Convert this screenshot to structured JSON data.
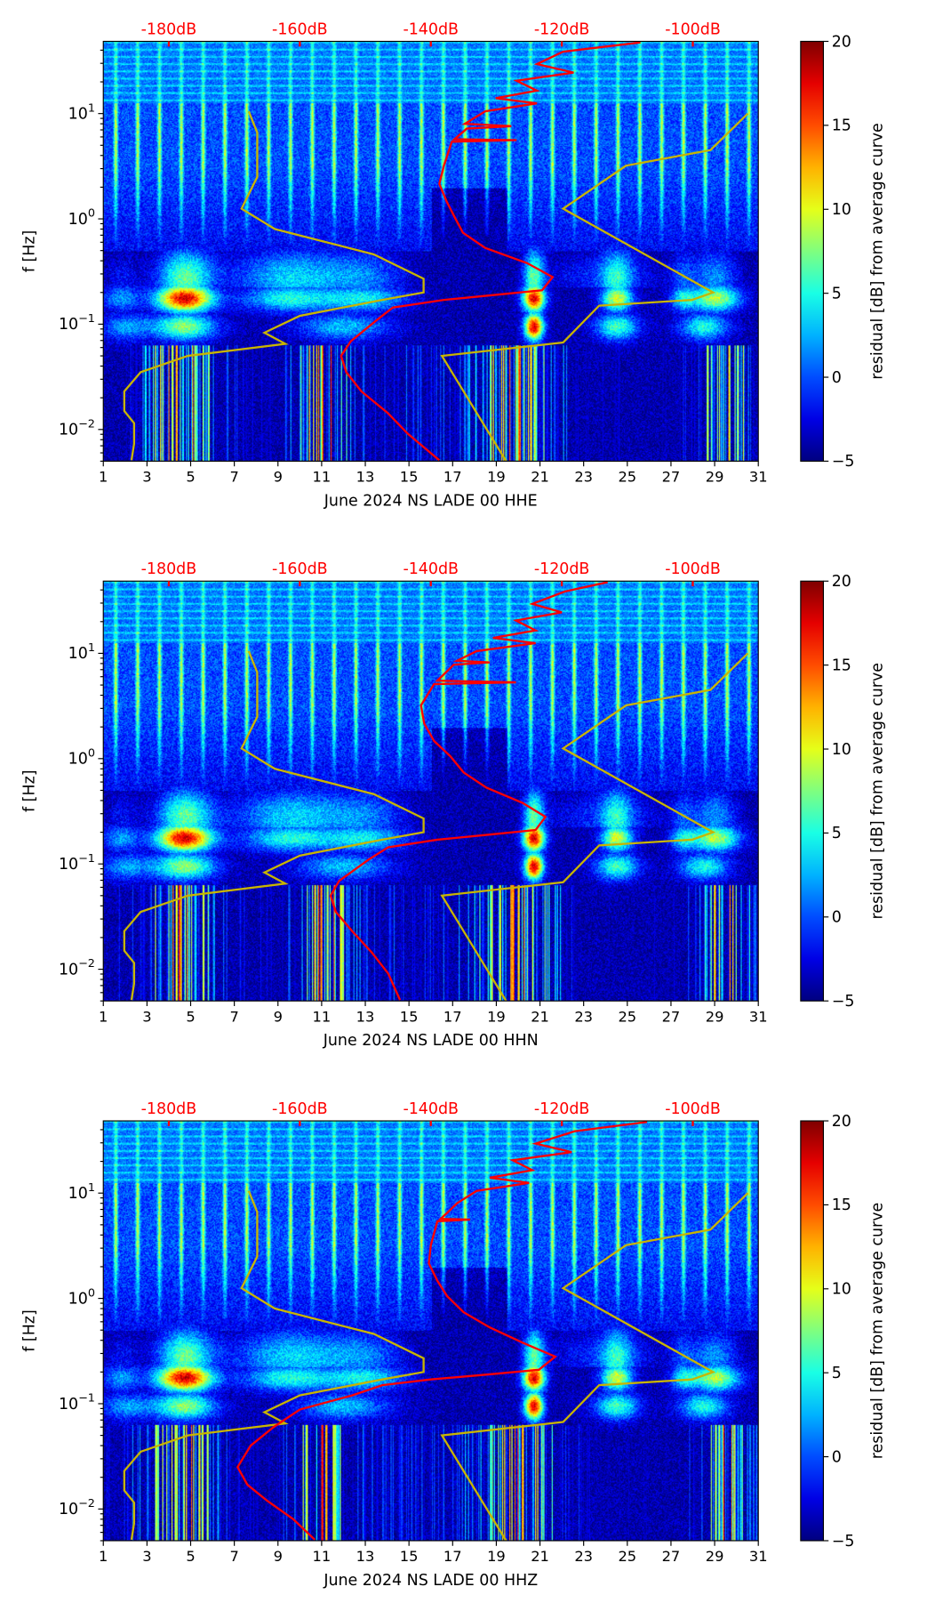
{
  "chart_data": [
    {
      "type": "heatmap",
      "title": "",
      "xlabel": "June 2024 NS LADE 00 HHE",
      "ylabel": "f [Hz]",
      "xlim": [
        1,
        31
      ],
      "ylim": [
        0.005,
        48.5
      ],
      "yscale": "log",
      "x_ticks": [
        "1",
        "3",
        "5",
        "7",
        "9",
        "11",
        "13",
        "15",
        "17",
        "19",
        "21",
        "23",
        "25",
        "27",
        "29",
        "31"
      ],
      "top_axis": {
        "xlim_dB": [
          -190,
          -90
        ],
        "ticks": [
          -180,
          -160,
          -140,
          -120,
          -100
        ],
        "tick_labels": [
          "-180dB",
          "-160dB",
          "-140dB",
          "-120dB",
          "-100dB"
        ],
        "color": "#ff0000"
      },
      "colorbar": {
        "label": "residual [dB] from average curve",
        "range": [
          -5,
          20
        ],
        "ticks": [
          "−5",
          "0",
          "5",
          "10",
          "15",
          "20"
        ],
        "colormap": "jet"
      },
      "red_curve_freq_dB": [
        [
          47.4,
          -108
        ],
        [
          38.7,
          -119.8
        ],
        [
          29.5,
          -123.8
        ],
        [
          24.5,
          -118.2
        ],
        [
          20.5,
          -126.9
        ],
        [
          16.5,
          -123.8
        ],
        [
          14.0,
          -130.1
        ],
        [
          12.5,
          -123.8
        ],
        [
          10.5,
          -131.7
        ],
        [
          8.0,
          -134.8
        ],
        [
          7.6,
          -127.7
        ],
        [
          7.2,
          -134.5
        ],
        [
          5.7,
          -136.4
        ],
        [
          5.6,
          -126.9
        ],
        [
          5.4,
          -136.8
        ],
        [
          3.2,
          -138.0
        ],
        [
          2.15,
          -138.7
        ],
        [
          1.47,
          -137.6
        ],
        [
          1.05,
          -136.4
        ],
        [
          0.74,
          -135.1
        ],
        [
          0.53,
          -131.7
        ],
        [
          0.38,
          -125.3
        ],
        [
          0.28,
          -121.4
        ],
        [
          0.21,
          -123.0
        ],
        [
          0.19,
          -130.1
        ],
        [
          0.17,
          -138.0
        ],
        [
          0.144,
          -145.8
        ],
        [
          0.11,
          -148.2
        ],
        [
          0.069,
          -152.2
        ],
        [
          0.05,
          -153.7
        ],
        [
          0.035,
          -152.9
        ],
        [
          0.023,
          -150.6
        ],
        [
          0.0144,
          -146.6
        ],
        [
          0.0091,
          -143.5
        ],
        [
          0.0051,
          -138.7
        ]
      ]
    },
    {
      "type": "heatmap",
      "title": "",
      "xlabel": "June 2024 NS LADE 00 HHN",
      "ylabel": "f [Hz]",
      "xlim": [
        1,
        31
      ],
      "ylim": [
        0.005,
        48.5
      ],
      "yscale": "log",
      "x_ticks": [
        "1",
        "3",
        "5",
        "7",
        "9",
        "11",
        "13",
        "15",
        "17",
        "19",
        "21",
        "23",
        "25",
        "27",
        "29",
        "31"
      ],
      "top_axis": {
        "xlim_dB": [
          -190,
          -90
        ],
        "ticks": [
          -180,
          -160,
          -140,
          -120,
          -100
        ],
        "tick_labels": [
          "-180dB",
          "-160dB",
          "-140dB",
          "-120dB",
          "-100dB"
        ],
        "color": "#ff0000"
      },
      "colorbar": {
        "label": "residual [dB] from average curve",
        "range": [
          -5,
          20
        ],
        "ticks": [
          "−5",
          "0",
          "5",
          "10",
          "15",
          "20"
        ],
        "colormap": "jet"
      },
      "red_curve_freq_dB": [
        [
          47.4,
          -113
        ],
        [
          38.7,
          -119.5
        ],
        [
          29.5,
          -124.5
        ],
        [
          24.5,
          -120
        ],
        [
          20.5,
          -127
        ],
        [
          16.5,
          -124
        ],
        [
          14.0,
          -130.5
        ],
        [
          12.5,
          -124
        ],
        [
          10.5,
          -133
        ],
        [
          8.5,
          -136
        ],
        [
          8.2,
          -131
        ],
        [
          7.8,
          -136.5
        ],
        [
          5.5,
          -139
        ],
        [
          5.3,
          -127
        ],
        [
          5.1,
          -139.5
        ],
        [
          3.2,
          -141.5
        ],
        [
          2.15,
          -141
        ],
        [
          1.47,
          -139.5
        ],
        [
          1.05,
          -137
        ],
        [
          0.74,
          -135
        ],
        [
          0.53,
          -131.5
        ],
        [
          0.38,
          -126
        ],
        [
          0.28,
          -122.5
        ],
        [
          0.21,
          -124
        ],
        [
          0.19,
          -131
        ],
        [
          0.17,
          -139
        ],
        [
          0.144,
          -146.5
        ],
        [
          0.11,
          -149.5
        ],
        [
          0.069,
          -154
        ],
        [
          0.05,
          -155.3
        ],
        [
          0.035,
          -154.5
        ],
        [
          0.023,
          -152
        ],
        [
          0.0144,
          -149
        ],
        [
          0.0091,
          -146.5
        ],
        [
          0.0051,
          -144.7
        ]
      ]
    },
    {
      "type": "heatmap",
      "title": "",
      "xlabel": "June 2024 NS LADE 00 HHZ",
      "ylabel": "f [Hz]",
      "xlim": [
        1,
        31
      ],
      "ylim": [
        0.005,
        48.5
      ],
      "yscale": "log",
      "x_ticks": [
        "1",
        "3",
        "5",
        "7",
        "9",
        "11",
        "13",
        "15",
        "17",
        "19",
        "21",
        "23",
        "25",
        "27",
        "29",
        "31"
      ],
      "top_axis": {
        "xlim_dB": [
          -190,
          -90
        ],
        "ticks": [
          -180,
          -160,
          -140,
          -120,
          -100
        ],
        "tick_labels": [
          "-180dB",
          "-160dB",
          "-140dB",
          "-120dB",
          "-100dB"
        ],
        "color": "#ff0000"
      },
      "colorbar": {
        "label": "residual [dB] from average curve",
        "range": [
          -5,
          20
        ],
        "ticks": [
          "−5",
          "0",
          "5",
          "10",
          "15",
          "20"
        ],
        "colormap": "jet"
      },
      "red_curve_freq_dB": [
        [
          47.4,
          -107
        ],
        [
          38.7,
          -118
        ],
        [
          29.5,
          -124
        ],
        [
          24.5,
          -118.5
        ],
        [
          20.5,
          -127.5
        ],
        [
          16.5,
          -124.5
        ],
        [
          14.0,
          -131
        ],
        [
          12.5,
          -125
        ],
        [
          10.5,
          -133
        ],
        [
          8.0,
          -136
        ],
        [
          6.5,
          -137.5
        ],
        [
          5.7,
          -138.5
        ],
        [
          5.6,
          -134
        ],
        [
          5.4,
          -139
        ],
        [
          3.2,
          -140
        ],
        [
          2.15,
          -140.3
        ],
        [
          1.47,
          -139
        ],
        [
          1.05,
          -137.5
        ],
        [
          0.74,
          -135
        ],
        [
          0.53,
          -131
        ],
        [
          0.38,
          -126
        ],
        [
          0.28,
          -121
        ],
        [
          0.21,
          -123.5
        ],
        [
          0.19,
          -131
        ],
        [
          0.17,
          -140
        ],
        [
          0.15,
          -147.4
        ],
        [
          0.12,
          -152
        ],
        [
          0.088,
          -160
        ],
        [
          0.06,
          -164
        ],
        [
          0.04,
          -167.5
        ],
        [
          0.025,
          -169.5
        ],
        [
          0.017,
          -168
        ],
        [
          0.012,
          -165
        ],
        [
          0.008,
          -161
        ],
        [
          0.0051,
          -157.7
        ]
      ]
    }
  ],
  "reference_models": {
    "nlnm_freq_dB": [
      [
        10.5,
        -167.8
      ],
      [
        6.6,
        -166.5
      ],
      [
        2.5,
        -166.5
      ],
      [
        1.25,
        -168.9
      ],
      [
        0.8,
        -163.8
      ],
      [
        0.46,
        -148.7
      ],
      [
        0.27,
        -141.1
      ],
      [
        0.2,
        -141.1
      ],
      [
        0.17,
        -147.4
      ],
      [
        0.12,
        -160
      ],
      [
        0.083,
        -165.4
      ],
      [
        0.065,
        -162.2
      ],
      [
        0.05,
        -177.1
      ],
      [
        0.035,
        -184.3
      ],
      [
        0.023,
        -186.8
      ],
      [
        0.015,
        -186.8
      ],
      [
        0.0115,
        -185.3
      ],
      [
        0.0073,
        -185.3
      ],
      [
        0.0051,
        -185.7
      ]
    ],
    "nhnm_freq_dB": [
      [
        10,
        -91.6
      ],
      [
        4.5,
        -97.3
      ],
      [
        3.2,
        -110.2
      ],
      [
        1.25,
        -119.8
      ],
      [
        0.2,
        -96.9
      ],
      [
        0.17,
        -100.1
      ],
      [
        0.15,
        -114.3
      ],
      [
        0.067,
        -119.8
      ],
      [
        0.05,
        -138.3
      ],
      [
        0.005,
        -128.5
      ]
    ],
    "color": "#c8b400"
  },
  "colors": {
    "red_curve": "#ff0000",
    "reference_models": "#c8b400"
  }
}
